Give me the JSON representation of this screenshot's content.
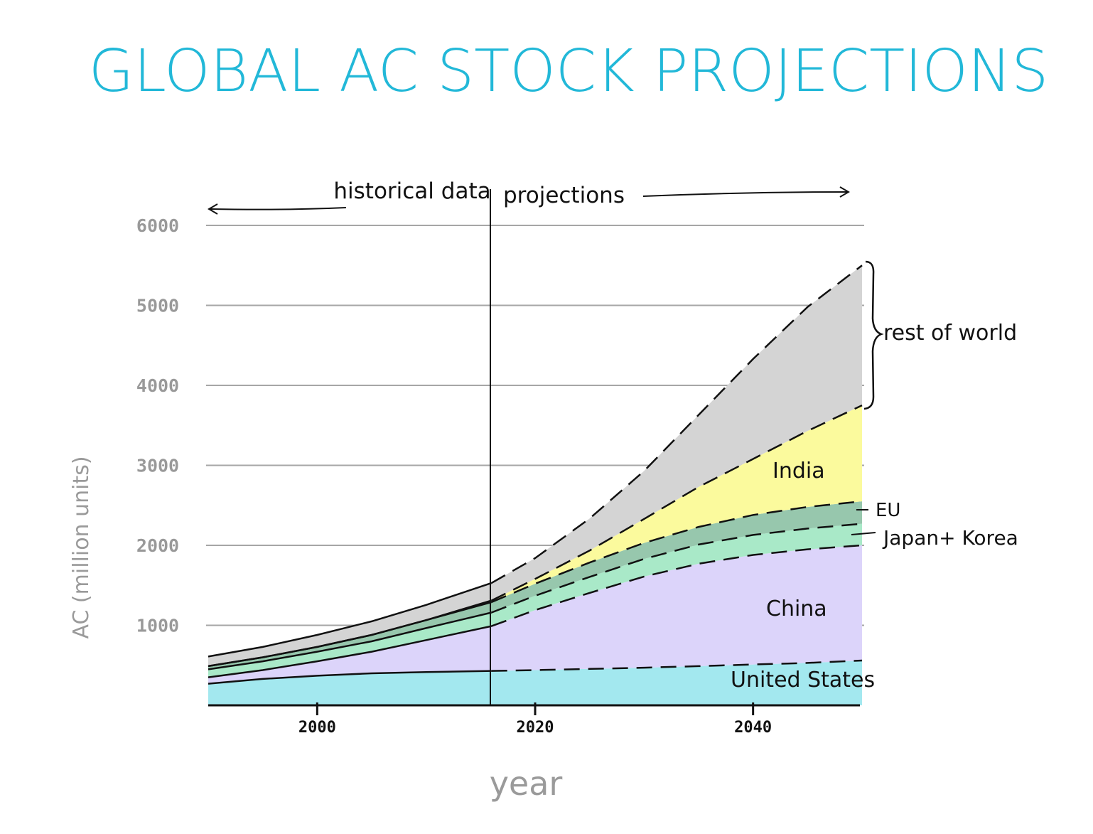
{
  "chart_data": {
    "type": "area",
    "stacked": true,
    "title": "GLOBAL AC STOCK PROJECTIONS",
    "xlabel": "year",
    "ylabel": "AC (million units)",
    "xlim": [
      1990,
      2050
    ],
    "ylim": [
      0,
      6000
    ],
    "x_ticks": [
      "2000",
      "2020",
      "2040"
    ],
    "y_ticks": [
      "1000",
      "2000",
      "3000",
      "4000",
      "5000",
      "6000"
    ],
    "grid": true,
    "divider_year": 2016,
    "divider_labels": {
      "left": "historical data",
      "right": "projections"
    },
    "x": [
      1990,
      1995,
      2000,
      2005,
      2010,
      2016,
      2020,
      2025,
      2030,
      2035,
      2040,
      2045,
      2050
    ],
    "series": [
      {
        "name": "United States",
        "color": "#a3e8ef",
        "values": [
          270,
          330,
          370,
          400,
          415,
          430,
          440,
          455,
          470,
          490,
          510,
          530,
          560
        ]
      },
      {
        "name": "China",
        "color": "#dcd4fa",
        "values": [
          80,
          110,
          180,
          270,
          400,
          560,
          750,
          950,
          1140,
          1280,
          1370,
          1420,
          1440
        ]
      },
      {
        "name": "Japan+Korea",
        "color": "#a9e9c8",
        "values": [
          100,
          110,
          120,
          130,
          150,
          170,
          180,
          200,
          220,
          240,
          250,
          260,
          270
        ]
      },
      {
        "name": "EU",
        "color": "#97c7ad",
        "values": [
          40,
          50,
          60,
          80,
          100,
          130,
          150,
          180,
          200,
          220,
          250,
          270,
          280
        ]
      },
      {
        "name": "India",
        "color": "#fbfa9d",
        "values": [
          0,
          0,
          0,
          0,
          0,
          20,
          60,
          150,
          300,
          500,
          700,
          950,
          1200
        ]
      },
      {
        "name": "rest of world",
        "color": "#d4d4d4",
        "values": [
          120,
          130,
          150,
          170,
          190,
          220,
          260,
          400,
          600,
          900,
          1250,
          1550,
          1750
        ]
      }
    ],
    "annotations": [
      "United States",
      "China",
      "Japan+ Korea",
      "EU",
      "India",
      "rest of world"
    ]
  }
}
